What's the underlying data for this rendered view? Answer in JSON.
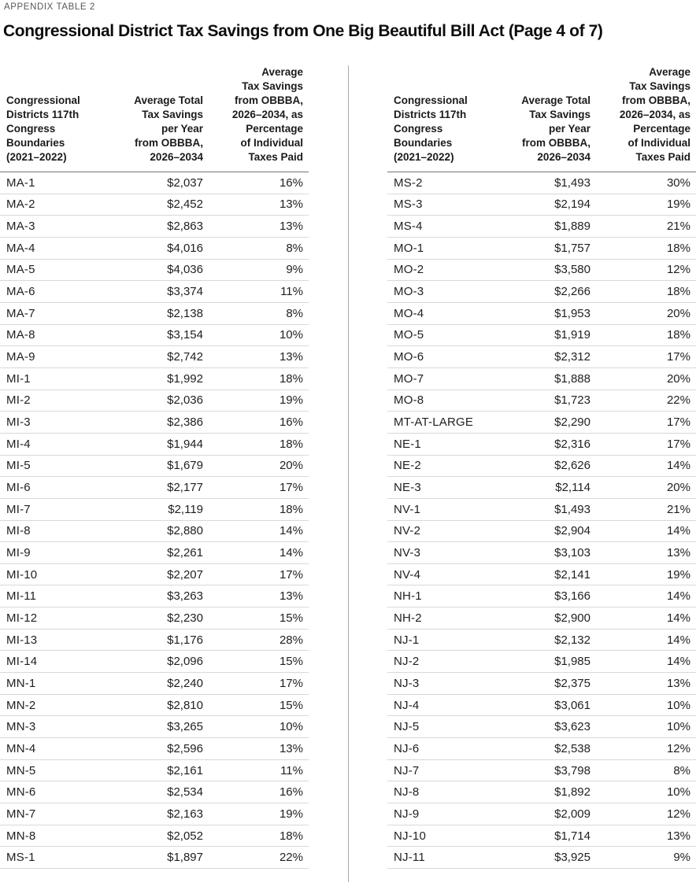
{
  "page": {
    "eyebrow": "APPENDIX TABLE 2",
    "title": "Congressional District Tax Savings from One Big Beautiful Bill Act (Page 4 of 7)"
  },
  "columns": {
    "district": "Congressional\nDistricts 117th\nCongress\nBoundaries\n(2021–2022)",
    "savings": "Average Total\nTax Savings\nper Year\nfrom OBBBA,\n2026–2034",
    "pct": "Average\nTax Savings\nfrom OBBBA,\n2026–2034, as\nPercentage\nof Individual\nTaxes Paid"
  },
  "tables": [
    {
      "side": "left",
      "rows": [
        [
          "MA-1",
          "$2,037",
          "16%"
        ],
        [
          "MA-2",
          "$2,452",
          "13%"
        ],
        [
          "MA-3",
          "$2,863",
          "13%"
        ],
        [
          "MA-4",
          "$4,016",
          "8%"
        ],
        [
          "MA-5",
          "$4,036",
          "9%"
        ],
        [
          "MA-6",
          "$3,374",
          "11%"
        ],
        [
          "MA-7",
          "$2,138",
          "8%"
        ],
        [
          "MA-8",
          "$3,154",
          "10%"
        ],
        [
          "MA-9",
          "$2,742",
          "13%"
        ],
        [
          "MI-1",
          "$1,992",
          "18%"
        ],
        [
          "MI-2",
          "$2,036",
          "19%"
        ],
        [
          "MI-3",
          "$2,386",
          "16%"
        ],
        [
          "MI-4",
          "$1,944",
          "18%"
        ],
        [
          "MI-5",
          "$1,679",
          "20%"
        ],
        [
          "MI-6",
          "$2,177",
          "17%"
        ],
        [
          "MI-7",
          "$2,119",
          "18%"
        ],
        [
          "MI-8",
          "$2,880",
          "14%"
        ],
        [
          "MI-9",
          "$2,261",
          "14%"
        ],
        [
          "MI-10",
          "$2,207",
          "17%"
        ],
        [
          "MI-11",
          "$3,263",
          "13%"
        ],
        [
          "MI-12",
          "$2,230",
          "15%"
        ],
        [
          "MI-13",
          "$1,176",
          "28%"
        ],
        [
          "MI-14",
          "$2,096",
          "15%"
        ],
        [
          "MN-1",
          "$2,240",
          "17%"
        ],
        [
          "MN-2",
          "$2,810",
          "15%"
        ],
        [
          "MN-3",
          "$3,265",
          "10%"
        ],
        [
          "MN-4",
          "$2,596",
          "13%"
        ],
        [
          "MN-5",
          "$2,161",
          "11%"
        ],
        [
          "MN-6",
          "$2,534",
          "16%"
        ],
        [
          "MN-7",
          "$2,163",
          "19%"
        ],
        [
          "MN-8",
          "$2,052",
          "18%"
        ],
        [
          "MS-1",
          "$1,897",
          "22%"
        ]
      ]
    },
    {
      "side": "right",
      "rows": [
        [
          "MS-2",
          "$1,493",
          "30%"
        ],
        [
          "MS-3",
          "$2,194",
          "19%"
        ],
        [
          "MS-4",
          "$1,889",
          "21%"
        ],
        [
          "MO-1",
          "$1,757",
          "18%"
        ],
        [
          "MO-2",
          "$3,580",
          "12%"
        ],
        [
          "MO-3",
          "$2,266",
          "18%"
        ],
        [
          "MO-4",
          "$1,953",
          "20%"
        ],
        [
          "MO-5",
          "$1,919",
          "18%"
        ],
        [
          "MO-6",
          "$2,312",
          "17%"
        ],
        [
          "MO-7",
          "$1,888",
          "20%"
        ],
        [
          "MO-8",
          "$1,723",
          "22%"
        ],
        [
          "MT-AT-LARGE",
          "$2,290",
          "17%"
        ],
        [
          "NE-1",
          "$2,316",
          "17%"
        ],
        [
          "NE-2",
          "$2,626",
          "14%"
        ],
        [
          "NE-3",
          "$2,114",
          "20%"
        ],
        [
          "NV-1",
          "$1,493",
          "21%"
        ],
        [
          "NV-2",
          "$2,904",
          "14%"
        ],
        [
          "NV-3",
          "$3,103",
          "13%"
        ],
        [
          "NV-4",
          "$2,141",
          "19%"
        ],
        [
          "NH-1",
          "$3,166",
          "14%"
        ],
        [
          "NH-2",
          "$2,900",
          "14%"
        ],
        [
          "NJ-1",
          "$2,132",
          "14%"
        ],
        [
          "NJ-2",
          "$1,985",
          "14%"
        ],
        [
          "NJ-3",
          "$2,375",
          "13%"
        ],
        [
          "NJ-4",
          "$3,061",
          "10%"
        ],
        [
          "NJ-5",
          "$3,623",
          "10%"
        ],
        [
          "NJ-6",
          "$2,538",
          "12%"
        ],
        [
          "NJ-7",
          "$3,798",
          "8%"
        ],
        [
          "NJ-8",
          "$1,892",
          "10%"
        ],
        [
          "NJ-9",
          "$2,009",
          "12%"
        ],
        [
          "NJ-10",
          "$1,714",
          "13%"
        ],
        [
          "NJ-11",
          "$3,925",
          "9%"
        ]
      ]
    }
  ],
  "colors": {
    "text": "#1f1f1f",
    "eyebrow_text": "#57585a",
    "row_separator": "#d8d8d8",
    "header_border": "#757575",
    "vertical_divider": "#aaaaaa",
    "background": "#ffffff"
  }
}
